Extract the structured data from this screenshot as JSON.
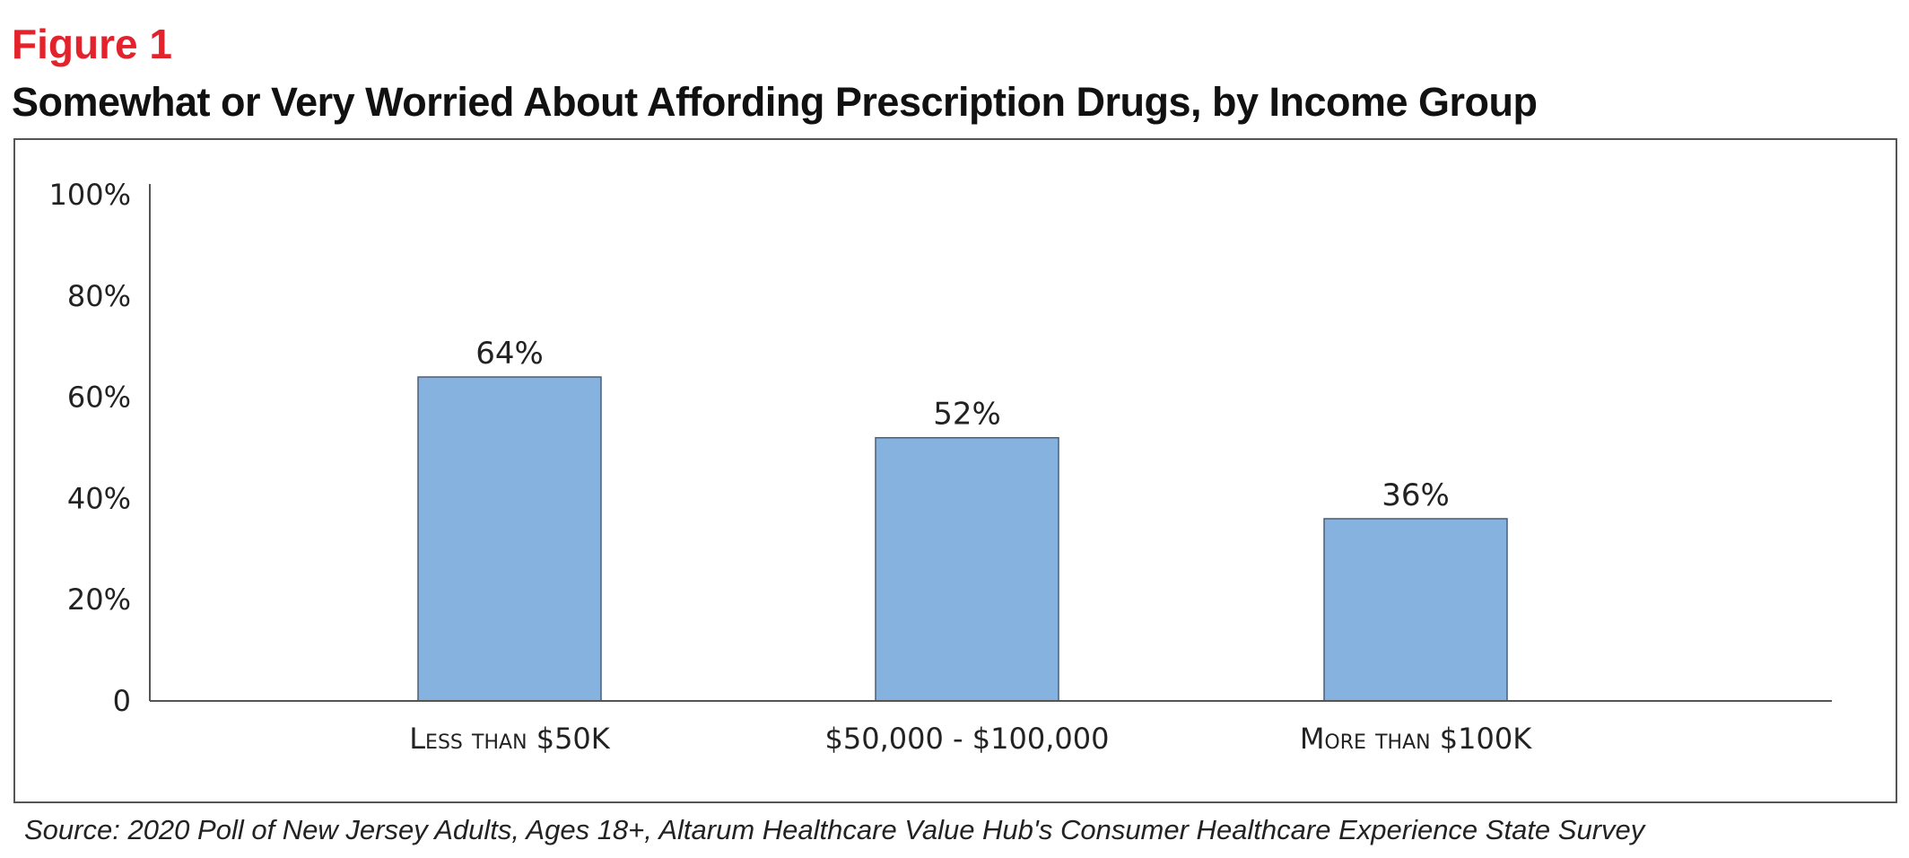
{
  "figure_label": "Figure 1",
  "source": "Source: 2020 Poll of New Jersey Adults, Ages 18+, Altarum Healthcare Value Hub's Consumer Healthcare Experience State Survey",
  "chart_data": {
    "type": "bar",
    "title": "Somewhat or Very Worried About Affording Prescription Drugs, by Income Group",
    "categories": [
      "Less than $50K",
      "$50,000 - $100,000",
      "More than $100K"
    ],
    "values": [
      64,
      52,
      36
    ],
    "value_labels": [
      "64%",
      "52%",
      "36%"
    ],
    "ylim": [
      0,
      100
    ],
    "yticks": [
      0,
      20,
      40,
      60,
      80,
      100
    ],
    "ytick_labels": [
      "0",
      "20%",
      "40%",
      "60%",
      "80%",
      "100%"
    ],
    "xlabel": "",
    "ylabel": "",
    "grid": false,
    "bar_color": "#86b2e0",
    "bar_edge_color": "#4a5f78",
    "axis_color": "#555555"
  }
}
